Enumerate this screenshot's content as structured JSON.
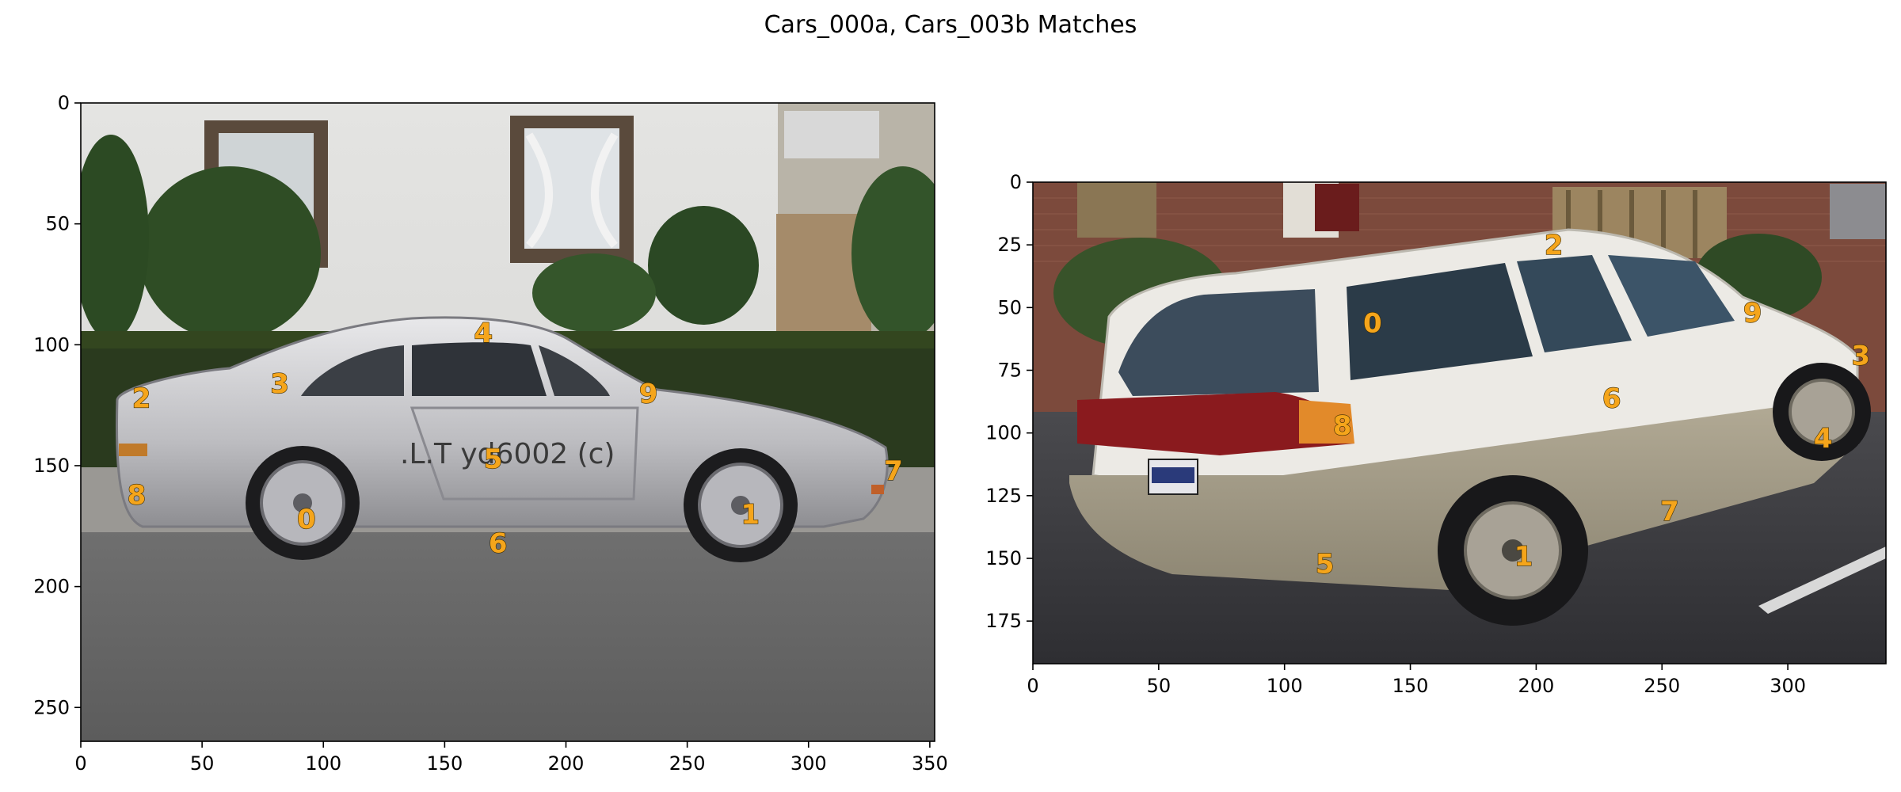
{
  "title": "Cars_000a, Cars_003b Matches",
  "colors": {
    "keypoint_label": "#f5a51b",
    "axis": "#000000",
    "background": "#ffffff"
  },
  "chart_data": [
    {
      "type": "scatter",
      "name": "Cars_000a",
      "image_content": "silver sports coupe parked in front of a white house with hedges, side view facing right",
      "xlim": [
        0,
        352
      ],
      "ylim": [
        264,
        0
      ],
      "xticks": [
        0,
        50,
        100,
        150,
        200,
        250,
        300,
        350
      ],
      "yticks": [
        0,
        50,
        100,
        150,
        200,
        250
      ],
      "grid": false,
      "points": [
        {
          "label": "0",
          "x": 93,
          "y": 172
        },
        {
          "label": "1",
          "x": 276,
          "y": 170
        },
        {
          "label": "2",
          "x": 25,
          "y": 122
        },
        {
          "label": "3",
          "x": 82,
          "y": 116
        },
        {
          "label": "4",
          "x": 166,
          "y": 95
        },
        {
          "label": "5",
          "x": 170,
          "y": 147
        },
        {
          "label": "6",
          "x": 172,
          "y": 182
        },
        {
          "label": "7",
          "x": 335,
          "y": 152
        },
        {
          "label": "8",
          "x": 23,
          "y": 162
        },
        {
          "label": "9",
          "x": 234,
          "y": 120
        }
      ]
    },
    {
      "type": "scatter",
      "name": "Cars_003b",
      "image_content": "white and tan station wagon parked on asphalt in front of a brick house, rear three-quarter view",
      "xlim": [
        0,
        339
      ],
      "ylim": [
        192,
        0
      ],
      "xticks": [
        0,
        50,
        100,
        150,
        200,
        250,
        300
      ],
      "yticks": [
        0,
        25,
        50,
        75,
        100,
        125,
        150,
        175
      ],
      "grid": false,
      "points": [
        {
          "label": "0",
          "x": 135,
          "y": 56
        },
        {
          "label": "1",
          "x": 195,
          "y": 149
        },
        {
          "label": "2",
          "x": 207,
          "y": 25
        },
        {
          "label": "3",
          "x": 329,
          "y": 69
        },
        {
          "label": "4",
          "x": 314,
          "y": 102
        },
        {
          "label": "5",
          "x": 116,
          "y": 152
        },
        {
          "label": "6",
          "x": 230,
          "y": 86
        },
        {
          "label": "7",
          "x": 253,
          "y": 131
        },
        {
          "label": "8",
          "x": 123,
          "y": 97
        },
        {
          "label": "9",
          "x": 286,
          "y": 52
        }
      ]
    }
  ]
}
